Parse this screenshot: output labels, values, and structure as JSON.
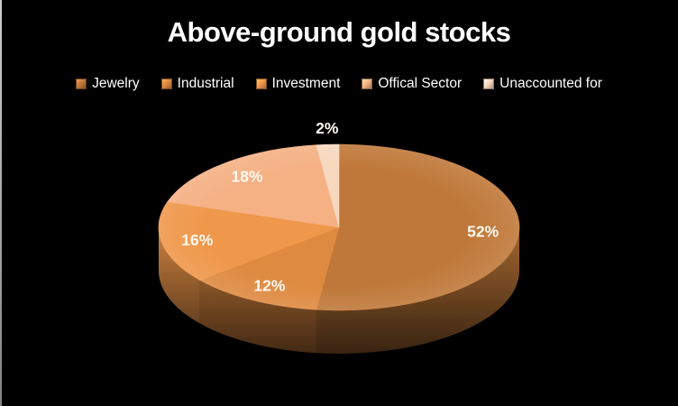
{
  "title": "Above-ground gold stocks",
  "background_color": "#000000",
  "text_color": "#ffffff",
  "chart_data": {
    "type": "pie",
    "style": "3d",
    "title": "Above-ground gold stocks",
    "legend_position": "top",
    "start_angle_deg": 0,
    "direction": "clockwise",
    "total": 100,
    "slices": [
      {
        "label": "Jewelry",
        "value": 52,
        "display": "52%",
        "color": "#BF7839"
      },
      {
        "label": "Industrial",
        "value": 12,
        "display": "12%",
        "color": "#DE8A41"
      },
      {
        "label": "Investment",
        "value": 16,
        "display": "16%",
        "color": "#EF974A"
      },
      {
        "label": "Offical Sector",
        "value": 18,
        "display": "18%",
        "color": "#F5B083"
      },
      {
        "label": "Unaccounted for",
        "value": 2,
        "display": "2%",
        "color": "#F8D8BE",
        "label_placement": "outside"
      }
    ]
  }
}
